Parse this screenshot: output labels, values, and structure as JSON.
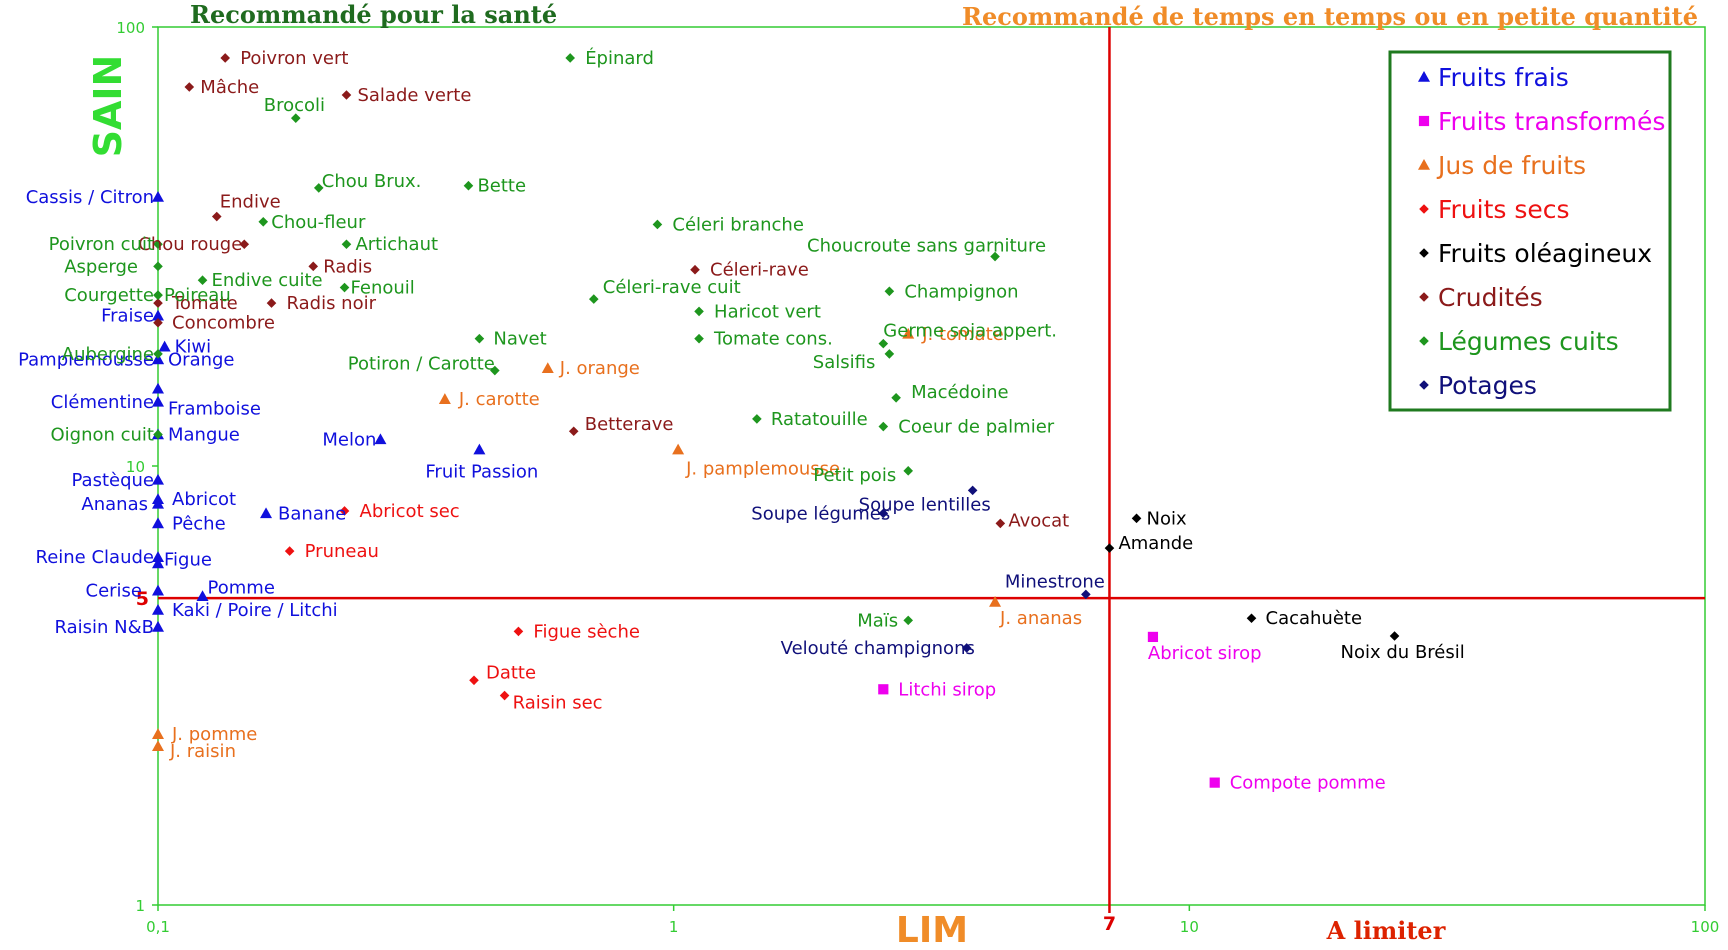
{
  "chart_data": {
    "type": "scatter",
    "x_scale": "log",
    "y_scale": "log",
    "xlim": [
      0.1,
      100
    ],
    "ylim": [
      1,
      100
    ],
    "x_ticks": [
      "0,1",
      "1",
      "10",
      "100"
    ],
    "y_ticks": [
      "1",
      "10",
      "100"
    ],
    "xlabel": "LIM",
    "ylabel": "SAIN",
    "title_left": "Recommandé pour la santé",
    "title_right": "Recommandé de temps en temps ou en petite quantité",
    "label_bottom_right": "A limiter",
    "ref_x": {
      "value": 7,
      "label": "7",
      "color": "#dd0000"
    },
    "ref_y": {
      "value": 5,
      "label": "5",
      "color": "#dd0000"
    },
    "legend_position": "top-right",
    "grid": false,
    "colors": {
      "axis": "#33cc33",
      "title_left": "#1f6b1f",
      "title_right": "#f08c28",
      "xlabel": "#f08c28",
      "ylabel": "#33dd33",
      "label_bottom_right": "#dd2200",
      "legend_border": "#1f7a1f"
    },
    "series": [
      {
        "name": "Fruits frais",
        "color": "#1010dd",
        "marker": "triangle",
        "points": [
          {
            "label": "Cassis / Citron",
            "x": 0.1,
            "y": 41
          },
          {
            "label": "Fraise",
            "x": 0.1,
            "y": 22
          },
          {
            "label": "Kiwi",
            "x": 0.103,
            "y": 18.7
          },
          {
            "label": "Pamplemousse",
            "x": 0.1,
            "y": 17.5
          },
          {
            "label": "Orange",
            "x": 0.1,
            "y": 17.5
          },
          {
            "label": "Framboise",
            "x": 0.1,
            "y": 15
          },
          {
            "label": "Clémentine",
            "x": 0.1,
            "y": 14
          },
          {
            "label": "Mangue",
            "x": 0.1,
            "y": 11.8
          },
          {
            "label": "Melon",
            "x": 0.27,
            "y": 11.5
          },
          {
            "label": "Fruit Passion",
            "x": 0.42,
            "y": 10.9
          },
          {
            "label": "Pastèque",
            "x": 0.1,
            "y": 9.3
          },
          {
            "label": "Abricot",
            "x": 0.1,
            "y": 8.4
          },
          {
            "label": "Ananas",
            "x": 0.1,
            "y": 8.2
          },
          {
            "label": "Pêche",
            "x": 0.1,
            "y": 7.4
          },
          {
            "label": "Banane",
            "x": 0.162,
            "y": 7.8
          },
          {
            "label": "Reine Claude",
            "x": 0.1,
            "y": 6.2
          },
          {
            "label": "Figue",
            "x": 0.1,
            "y": 6.0
          },
          {
            "label": "Pomme",
            "x": 0.122,
            "y": 5.05
          },
          {
            "label": "Cerise",
            "x": 0.1,
            "y": 5.2
          },
          {
            "label": "Kaki / Poire / Litchi",
            "x": 0.1,
            "y": 4.7
          },
          {
            "label": "Raisin N&B",
            "x": 0.1,
            "y": 4.3
          }
        ]
      },
      {
        "name": "Fruits transformés",
        "color": "#ee00ee",
        "marker": "square",
        "points": [
          {
            "label": "Abricot sirop",
            "x": 8.5,
            "y": 4.08
          },
          {
            "label": "Litchi sirop",
            "x": 2.55,
            "y": 3.1
          },
          {
            "label": "Compote pomme",
            "x": 11.2,
            "y": 1.9
          }
        ]
      },
      {
        "name": "Jus de fruits",
        "color": "#e8701e",
        "marker": "triangle",
        "points": [
          {
            "label": "J. orange",
            "x": 0.57,
            "y": 16.7
          },
          {
            "label": "J. carotte",
            "x": 0.36,
            "y": 14.2
          },
          {
            "label": "J. pamplemousse",
            "x": 1.02,
            "y": 10.9
          },
          {
            "label": "J. tomate",
            "x": 2.85,
            "y": 20
          },
          {
            "label": "J. ananas",
            "x": 4.2,
            "y": 4.9
          },
          {
            "label": "J. pomme",
            "x": 0.1,
            "y": 2.45
          },
          {
            "label": "J. raisin",
            "x": 0.1,
            "y": 2.3
          }
        ]
      },
      {
        "name": "Fruits secs",
        "color": "#ee1111",
        "marker": "diamond",
        "points": [
          {
            "label": "Abricot sec",
            "x": 0.23,
            "y": 7.9
          },
          {
            "label": "Pruneau",
            "x": 0.18,
            "y": 6.4
          },
          {
            "label": "Figue sèche",
            "x": 0.5,
            "y": 4.2
          },
          {
            "label": "Datte",
            "x": 0.41,
            "y": 3.25
          },
          {
            "label": "Raisin sec",
            "x": 0.47,
            "y": 3.0
          }
        ]
      },
      {
        "name": "Fruits oléagineux",
        "color": "#000000",
        "marker": "diamond",
        "points": [
          {
            "label": "Noix",
            "x": 7.9,
            "y": 7.6
          },
          {
            "label": "Amande",
            "x": 7.0,
            "y": 6.5
          },
          {
            "label": "Cacahuète",
            "x": 13.2,
            "y": 4.5
          },
          {
            "label": "Noix du Brésil",
            "x": 25,
            "y": 4.1
          }
        ]
      },
      {
        "name": "Crudités",
        "color": "#8b1a1a",
        "marker": "diamond",
        "points": [
          {
            "label": "Poivron vert",
            "x": 0.135,
            "y": 85
          },
          {
            "label": "Mâche",
            "x": 0.115,
            "y": 73
          },
          {
            "label": "Salade verte",
            "x": 0.232,
            "y": 70
          },
          {
            "label": "Endive",
            "x": 0.13,
            "y": 37
          },
          {
            "label": "Chou rouge",
            "x": 0.147,
            "y": 32
          },
          {
            "label": "Radis",
            "x": 0.2,
            "y": 28.5
          },
          {
            "label": "Céleri-rave",
            "x": 1.1,
            "y": 28
          },
          {
            "label": "Tomate",
            "x": 0.1,
            "y": 23.5
          },
          {
            "label": "Radis noir",
            "x": 0.166,
            "y": 23.5
          },
          {
            "label": "Concombre",
            "x": 0.1,
            "y": 21.2
          },
          {
            "label": "Betterave",
            "x": 0.64,
            "y": 12
          },
          {
            "label": "Avocat",
            "x": 4.3,
            "y": 7.4
          }
        ]
      },
      {
        "name": "Légumes cuits",
        "color": "#1e961e",
        "marker": "diamond",
        "points": [
          {
            "label": "Épinard",
            "x": 0.63,
            "y": 85
          },
          {
            "label": "Brocoli",
            "x": 0.185,
            "y": 62
          },
          {
            "label": "Chou Brux.",
            "x": 0.205,
            "y": 43
          },
          {
            "label": "Bette",
            "x": 0.4,
            "y": 43.5
          },
          {
            "label": "Chou-fleur",
            "x": 0.16,
            "y": 36
          },
          {
            "label": "Artichaut",
            "x": 0.232,
            "y": 32
          },
          {
            "label": "Céleri branche",
            "x": 0.93,
            "y": 35.5
          },
          {
            "label": "Choucroute sans garniture",
            "x": 4.2,
            "y": 30
          },
          {
            "label": "Poivron cuit",
            "x": 0.1,
            "y": 32
          },
          {
            "label": "Asperge",
            "x": 0.1,
            "y": 28.5
          },
          {
            "label": "Endive cuite",
            "x": 0.122,
            "y": 26.5
          },
          {
            "label": "Fenouil",
            "x": 0.23,
            "y": 25.5
          },
          {
            "label": "Champignon",
            "x": 2.62,
            "y": 25
          },
          {
            "label": "Céleri-rave cuit",
            "x": 0.7,
            "y": 24
          },
          {
            "label": "Courgette",
            "x": 0.1,
            "y": 24.5
          },
          {
            "label": "Poireau",
            "x": 0.1,
            "y": 24.5
          },
          {
            "label": "Haricot vert",
            "x": 1.12,
            "y": 22.5
          },
          {
            "label": "Navet",
            "x": 0.42,
            "y": 19.5
          },
          {
            "label": "Tomate cons.",
            "x": 1.12,
            "y": 19.5
          },
          {
            "label": "Germe soja appert.",
            "x": 2.55,
            "y": 19
          },
          {
            "label": "Salsifis",
            "x": 2.62,
            "y": 18
          },
          {
            "label": "Aubergine",
            "x": 0.1,
            "y": 18
          },
          {
            "label": "Potiron / Carotte",
            "x": 0.45,
            "y": 16.5
          },
          {
            "label": "Oignon cuit",
            "x": 0.1,
            "y": 11.8
          },
          {
            "label": "Macédoine",
            "x": 2.7,
            "y": 14.3
          },
          {
            "label": "Ratatouille",
            "x": 1.45,
            "y": 12.8
          },
          {
            "label": "Coeur de palmier",
            "x": 2.55,
            "y": 12.3
          },
          {
            "label": "Petit pois",
            "x": 2.85,
            "y": 9.75
          },
          {
            "label": "Maïs",
            "x": 2.85,
            "y": 4.45
          }
        ]
      },
      {
        "name": "Potages",
        "color": "#10107a",
        "marker": "diamond",
        "points": [
          {
            "label": "Soupe lentilles",
            "x": 3.8,
            "y": 8.8
          },
          {
            "label": "Soupe légumes",
            "x": 2.55,
            "y": 7.8
          },
          {
            "label": "Minestrone",
            "x": 6.3,
            "y": 5.1
          },
          {
            "label": "Velouté champignons",
            "x": 3.7,
            "y": 3.85
          }
        ]
      }
    ]
  }
}
